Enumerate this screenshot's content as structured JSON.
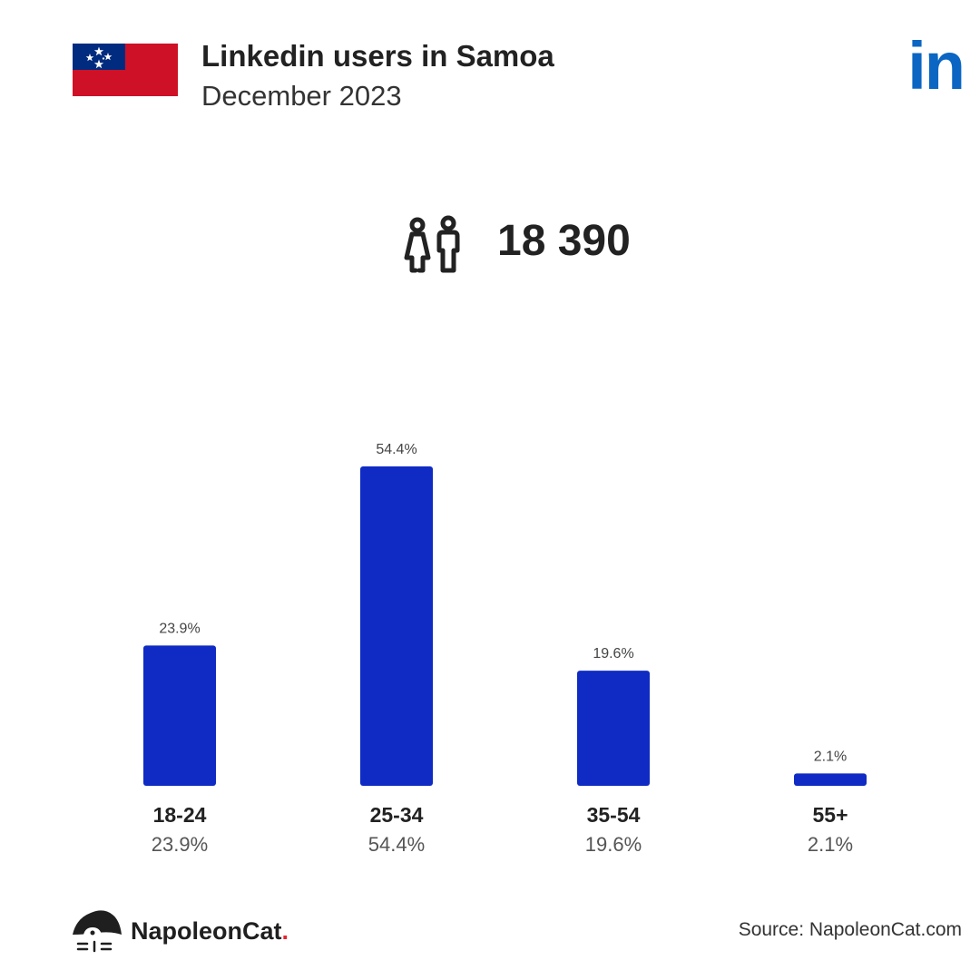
{
  "header": {
    "title": "Linkedin users in Samoa",
    "subtitle": "December 2023",
    "brand_logo_text": "in",
    "flag_icon": "samoa-flag-icon"
  },
  "summary": {
    "icon": "users-icon",
    "total_users": "18 390"
  },
  "chart_data": {
    "type": "bar",
    "categories": [
      "18-24",
      "25-34",
      "35-54",
      "55+"
    ],
    "values": [
      23.9,
      54.4,
      19.6,
      2.1
    ],
    "value_labels": [
      "23.9%",
      "54.4%",
      "19.6%",
      "2.1%"
    ],
    "title": "",
    "xlabel": "",
    "ylabel": "",
    "ylim": [
      0,
      54.4
    ],
    "grid": false,
    "legend": "none",
    "colors": {
      "bar": "#0f2bc4"
    }
  },
  "footer": {
    "logo_text": "NapoleonCat",
    "logo_dot": ".",
    "logo_icon": "napoleoncat-logo-icon",
    "source": "Source: NapoleonCat.com"
  },
  "colors": {
    "linkedin_blue": "#0a66c2",
    "flag_red": "#ce1126",
    "flag_blue": "#002b7f",
    "accent_red": "#e8232a"
  }
}
